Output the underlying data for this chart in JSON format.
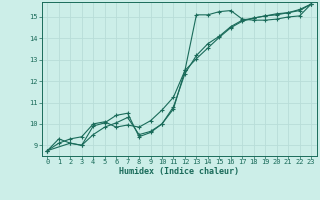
{
  "xlabel": "Humidex (Indice chaleur)",
  "bg_color": "#cceee8",
  "grid_color": "#b8ddd8",
  "line_color": "#1a6b5a",
  "xlim": [
    -0.5,
    23.5
  ],
  "ylim": [
    8.5,
    15.7
  ],
  "xticks": [
    0,
    1,
    2,
    3,
    4,
    5,
    6,
    7,
    8,
    9,
    10,
    11,
    12,
    13,
    14,
    15,
    16,
    17,
    18,
    19,
    20,
    21,
    22,
    23
  ],
  "yticks": [
    9,
    10,
    11,
    12,
    13,
    14,
    15
  ],
  "line1_x": [
    0,
    1,
    2,
    3,
    4,
    5,
    6,
    7,
    8,
    9,
    10,
    11,
    12,
    13,
    14,
    15,
    16,
    17,
    18,
    19,
    20,
    21,
    22,
    23
  ],
  "line1_y": [
    8.75,
    9.3,
    9.1,
    9.0,
    9.9,
    10.05,
    10.4,
    10.5,
    9.4,
    9.6,
    10.0,
    10.7,
    12.5,
    15.1,
    15.1,
    15.25,
    15.3,
    14.9,
    14.85,
    14.85,
    14.9,
    15.0,
    15.05,
    15.6
  ],
  "line2_x": [
    0,
    2,
    3,
    4,
    5,
    6,
    7,
    8,
    9,
    10,
    11,
    12,
    13,
    14,
    15,
    16,
    17,
    18,
    19,
    20,
    21,
    22,
    23
  ],
  "line2_y": [
    8.75,
    9.1,
    9.0,
    9.5,
    9.85,
    10.05,
    10.3,
    9.5,
    9.65,
    10.0,
    10.8,
    12.35,
    13.2,
    13.75,
    14.1,
    14.55,
    14.85,
    14.95,
    15.05,
    15.1,
    15.2,
    15.3,
    15.6
  ],
  "line3_x": [
    0,
    1,
    2,
    3,
    4,
    5,
    6,
    7,
    8,
    9,
    10,
    11,
    12,
    13,
    14,
    15,
    16,
    17,
    18,
    19,
    20,
    21,
    22,
    23
  ],
  "line3_y": [
    8.75,
    9.1,
    9.3,
    9.4,
    10.0,
    10.1,
    9.85,
    9.95,
    9.85,
    10.15,
    10.65,
    11.25,
    12.5,
    13.05,
    13.55,
    14.05,
    14.5,
    14.8,
    14.95,
    15.05,
    15.15,
    15.2,
    15.35,
    15.6
  ]
}
